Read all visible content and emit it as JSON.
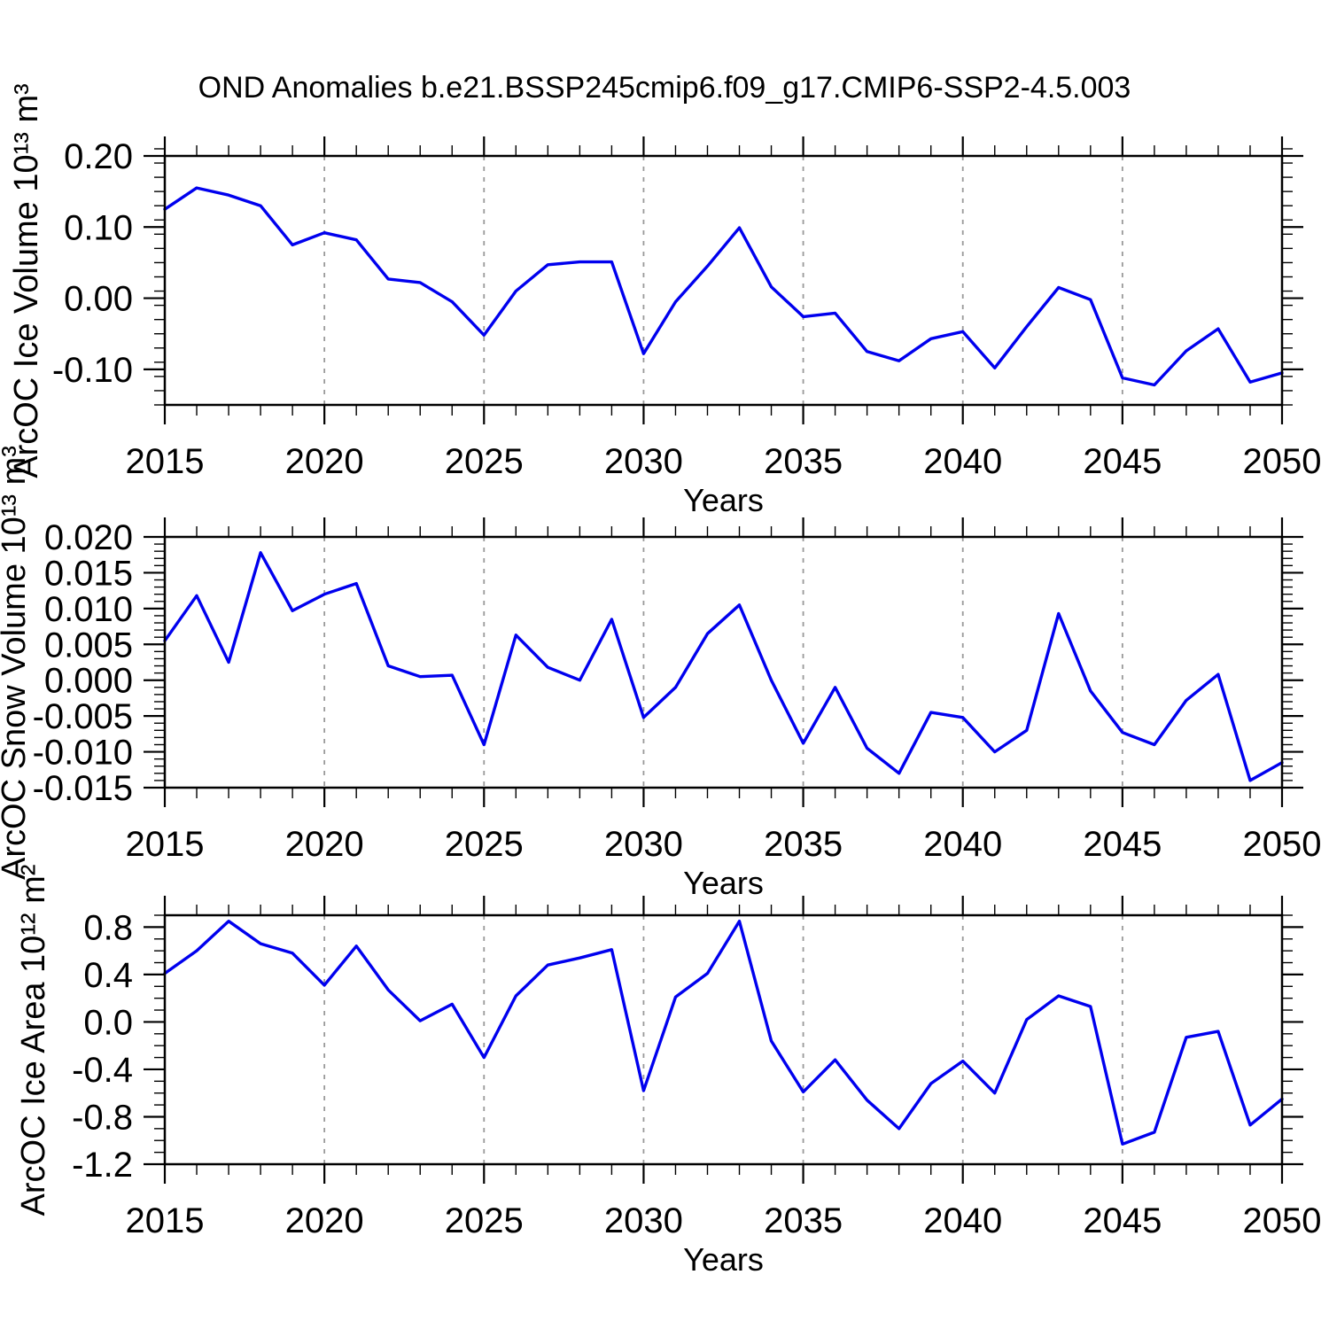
{
  "title": "OND Anomalies b.e21.BSSP245cmip6.f09_g17.CMIP6-SSP2-4.5.003",
  "line_color": "#0000ee",
  "grid_color": "#999999",
  "axis_color": "#000000",
  "chart_data": [
    {
      "type": "line",
      "series_name": "ArcOC Ice Volume anomaly",
      "ylabel": "ArcOC Ice Volume 10¹³ m³",
      "xlabel": "Years",
      "x": [
        2015,
        2016,
        2017,
        2018,
        2019,
        2020,
        2021,
        2022,
        2023,
        2024,
        2025,
        2026,
        2027,
        2028,
        2029,
        2030,
        2031,
        2032,
        2033,
        2034,
        2035,
        2036,
        2037,
        2038,
        2039,
        2040,
        2041,
        2042,
        2043,
        2044,
        2045,
        2046,
        2047,
        2048,
        2049,
        2050
      ],
      "values": [
        0.125,
        0.155,
        0.145,
        0.13,
        0.075,
        0.092,
        0.082,
        0.027,
        0.022,
        -0.005,
        -0.052,
        0.01,
        0.047,
        0.051,
        0.051,
        -0.078,
        -0.005,
        0.045,
        0.099,
        0.016,
        -0.026,
        -0.021,
        -0.075,
        -0.088,
        -0.057,
        -0.047,
        -0.098,
        -0.04,
        0.015,
        -0.002,
        -0.112,
        -0.122,
        -0.074,
        -0.043,
        -0.118,
        -0.105
      ],
      "ylim": [
        -0.15,
        0.2
      ],
      "xlim": [
        2015,
        2050
      ],
      "yticks": [
        {
          "v": 0.2,
          "label": "0.20"
        },
        {
          "v": 0.1,
          "label": "0.10"
        },
        {
          "v": 0.0,
          "label": "0.00"
        },
        {
          "v": -0.1,
          "label": "-0.10"
        }
      ],
      "ytick_minor_step": 0.02,
      "xticks": [
        {
          "v": 2015,
          "label": "2015"
        },
        {
          "v": 2020,
          "label": "2020"
        },
        {
          "v": 2025,
          "label": "2025"
        },
        {
          "v": 2030,
          "label": "2030"
        },
        {
          "v": 2035,
          "label": "2035"
        },
        {
          "v": 2040,
          "label": "2040"
        },
        {
          "v": 2045,
          "label": "2045"
        },
        {
          "v": 2050,
          "label": "2050"
        }
      ],
      "xtick_minor_step": 1,
      "grid_years": [
        2020,
        2025,
        2030,
        2035,
        2040,
        2045
      ],
      "grid": "vertical-dashed",
      "legend": "none"
    },
    {
      "type": "line",
      "series_name": "ArcOC Snow Volume anomaly",
      "ylabel": "ArcOC Snow Volume 10¹³ m³",
      "xlabel": "Years",
      "x": [
        2015,
        2016,
        2017,
        2018,
        2019,
        2020,
        2021,
        2022,
        2023,
        2024,
        2025,
        2026,
        2027,
        2028,
        2029,
        2030,
        2031,
        2032,
        2033,
        2034,
        2035,
        2036,
        2037,
        2038,
        2039,
        2040,
        2041,
        2042,
        2043,
        2044,
        2045,
        2046,
        2047,
        2048,
        2049,
        2050
      ],
      "values": [
        0.0055,
        0.0118,
        0.0025,
        0.0178,
        0.0097,
        0.012,
        0.0135,
        0.002,
        0.0005,
        0.0007,
        -0.009,
        0.0063,
        0.0018,
        0.0,
        0.0085,
        -0.0052,
        -0.001,
        0.0065,
        0.0105,
        0.0,
        -0.0088,
        -0.001,
        -0.0095,
        -0.013,
        -0.0045,
        -0.0052,
        -0.01,
        -0.007,
        0.0093,
        -0.0015,
        -0.0073,
        -0.009,
        -0.0028,
        0.0008,
        -0.014,
        -0.0115
      ],
      "ylim": [
        -0.015,
        0.02
      ],
      "xlim": [
        2015,
        2050
      ],
      "yticks": [
        {
          "v": 0.02,
          "label": "0.020"
        },
        {
          "v": 0.015,
          "label": "0.015"
        },
        {
          "v": 0.01,
          "label": "0.010"
        },
        {
          "v": 0.005,
          "label": "0.005"
        },
        {
          "v": 0.0,
          "label": "0.000"
        },
        {
          "v": -0.005,
          "label": "-0.005"
        },
        {
          "v": -0.01,
          "label": "-0.010"
        },
        {
          "v": -0.015,
          "label": "-0.015"
        }
      ],
      "ytick_minor_step": 0.001,
      "xticks": [
        {
          "v": 2015,
          "label": "2015"
        },
        {
          "v": 2020,
          "label": "2020"
        },
        {
          "v": 2025,
          "label": "2025"
        },
        {
          "v": 2030,
          "label": "2030"
        },
        {
          "v": 2035,
          "label": "2035"
        },
        {
          "v": 2040,
          "label": "2040"
        },
        {
          "v": 2045,
          "label": "2045"
        },
        {
          "v": 2050,
          "label": "2050"
        }
      ],
      "xtick_minor_step": 1,
      "grid_years": [
        2020,
        2025,
        2030,
        2035,
        2040,
        2045
      ],
      "grid": "vertical-dashed",
      "legend": "none"
    },
    {
      "type": "line",
      "series_name": "ArcOC Ice Area anomaly",
      "ylabel": "ArcOC Ice Area 10¹² m²",
      "xlabel": "Years",
      "x": [
        2015,
        2016,
        2017,
        2018,
        2019,
        2020,
        2021,
        2022,
        2023,
        2024,
        2025,
        2026,
        2027,
        2028,
        2029,
        2030,
        2031,
        2032,
        2033,
        2034,
        2035,
        2036,
        2037,
        2038,
        2039,
        2040,
        2041,
        2042,
        2043,
        2044,
        2045,
        2046,
        2047,
        2048,
        2049,
        2050
      ],
      "values": [
        0.41,
        0.6,
        0.85,
        0.66,
        0.58,
        0.31,
        0.64,
        0.27,
        0.01,
        0.15,
        -0.3,
        0.22,
        0.48,
        0.54,
        0.61,
        -0.58,
        0.21,
        0.41,
        0.85,
        -0.16,
        -0.59,
        -0.32,
        -0.66,
        -0.9,
        -0.52,
        -0.33,
        -0.6,
        0.02,
        0.22,
        0.13,
        -1.03,
        -0.93,
        -0.13,
        -0.08,
        -0.87,
        -0.65
      ],
      "ylim": [
        -1.2,
        0.9
      ],
      "xlim": [
        2015,
        2050
      ],
      "yticks": [
        {
          "v": 0.8,
          "label": "0.8"
        },
        {
          "v": 0.4,
          "label": "0.4"
        },
        {
          "v": 0.0,
          "label": "0.0"
        },
        {
          "v": -0.4,
          "label": "-0.4"
        },
        {
          "v": -0.8,
          "label": "-0.8"
        },
        {
          "v": -1.2,
          "label": "-1.2"
        }
      ],
      "ytick_minor_step": 0.1,
      "xticks": [
        {
          "v": 2015,
          "label": "2015"
        },
        {
          "v": 2020,
          "label": "2020"
        },
        {
          "v": 2025,
          "label": "2025"
        },
        {
          "v": 2030,
          "label": "2030"
        },
        {
          "v": 2035,
          "label": "2035"
        },
        {
          "v": 2040,
          "label": "2040"
        },
        {
          "v": 2045,
          "label": "2045"
        },
        {
          "v": 2050,
          "label": "2050"
        }
      ],
      "xtick_minor_step": 1,
      "grid_years": [
        2020,
        2025,
        2030,
        2035,
        2040,
        2045
      ],
      "grid": "vertical-dashed",
      "legend": "none"
    }
  ]
}
